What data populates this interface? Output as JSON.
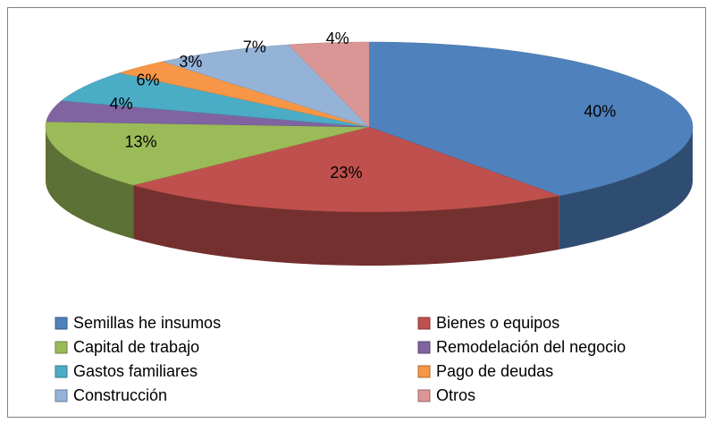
{
  "chart_data": {
    "type": "pie",
    "categories": [
      "Semillas he insumos",
      "Bienes o equipos",
      "Capital de trabajo",
      "Remodelación del negocio",
      "Gastos familiares",
      "Pago de deudas",
      "Construcción",
      "Otros"
    ],
    "values": [
      40,
      23,
      13,
      4,
      6,
      3,
      7,
      4
    ],
    "value_labels": [
      "40%",
      "23%",
      "13%",
      "4%",
      "6%",
      "3%",
      "7%",
      "4%"
    ],
    "colors": [
      "#4f81bd",
      "#c0504d",
      "#9bbb59",
      "#8064a2",
      "#4bacc6",
      "#f79646",
      "#95b3d7",
      "#d99694"
    ],
    "legend": "bottom"
  }
}
